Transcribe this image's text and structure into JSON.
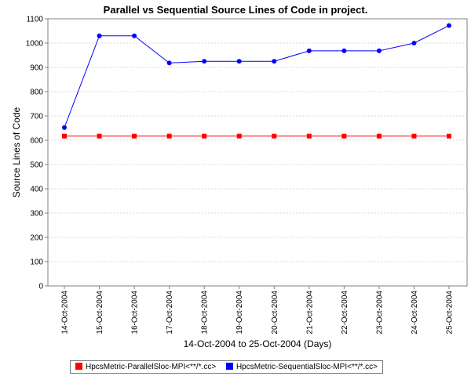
{
  "chart_data": {
    "type": "line",
    "title": "Parallel vs Sequential Source Lines of Code in project.",
    "xlabel": "14-Oct-2004 to 25-Oct-2004 (Days)",
    "ylabel": "Source Lines of Code",
    "categories": [
      "14-Oct-2004",
      "15-Oct-2004",
      "16-Oct-2004",
      "17-Oct-2004",
      "18-Oct-2004",
      "19-Oct-2004",
      "20-Oct-2004",
      "21-Oct-2004",
      "22-Oct-2004",
      "23-Oct-2004",
      "24-Oct-2004",
      "25-Oct-2004"
    ],
    "ylim": [
      0,
      1100
    ],
    "yticks": [
      0,
      100,
      200,
      300,
      400,
      500,
      600,
      700,
      800,
      900,
      1000,
      1100
    ],
    "grid": true,
    "legend_position": "bottom",
    "series": [
      {
        "name": "HpcsMetric-ParallelSloc-MPI<**/*.cc>",
        "color": "#ff0000",
        "marker": "square",
        "values": [
          617,
          617,
          617,
          617,
          617,
          617,
          617,
          617,
          617,
          617,
          617,
          617
        ]
      },
      {
        "name": "HpcsMetric-SequentialSloc-MPI<**/*.cc>",
        "color": "#0000ff",
        "marker": "circle",
        "values": [
          652,
          1030,
          1030,
          918,
          925,
          925,
          925,
          968,
          968,
          968,
          1000,
          1072
        ]
      }
    ]
  }
}
